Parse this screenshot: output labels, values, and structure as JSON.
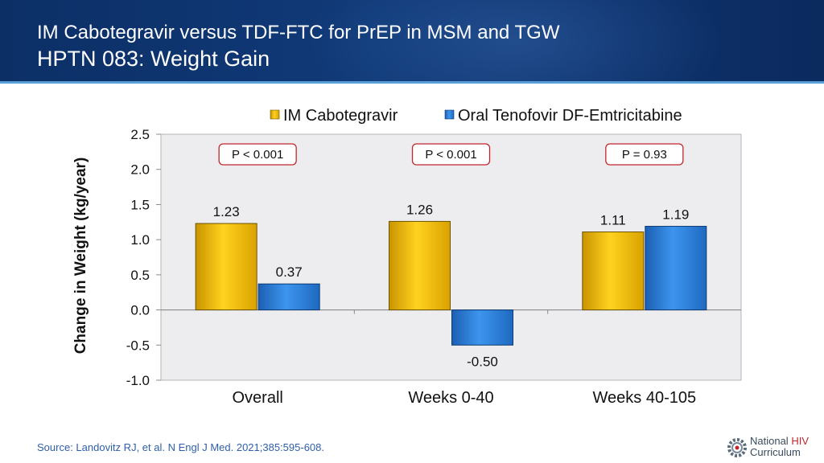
{
  "header": {
    "line1": "IM Cabotegravir versus TDF-FTC for PrEP in MSM and TGW",
    "line2": "HPTN 083: Weight Gain"
  },
  "source": "Source: Landovitz RJ, et al. N Engl J Med. 2021;385:595-608.",
  "logo": {
    "word1": "National",
    "word2": "HIV",
    "word3": "Curriculum"
  },
  "colors": {
    "cabotegravir": "#f2b705",
    "tenofovir": "#2b7fd6",
    "pbox_border": "#c0272d",
    "header": "#0c2f66"
  },
  "chart_data": {
    "type": "bar",
    "title": "",
    "xlabel": "",
    "ylabel": "Change in Weight (kg/year)",
    "ylim": [
      -1.0,
      2.5
    ],
    "yticks": [
      2.5,
      2.0,
      1.5,
      1.0,
      0.5,
      0.0,
      -0.5,
      -1.0
    ],
    "ytick_labels": [
      "2.5",
      "2.0",
      "1.5",
      "1.0",
      "0.5",
      "0.0",
      "-0.5",
      "-1.0"
    ],
    "categories": [
      "Overall",
      "Weeks 0-40",
      "Weeks 40-105"
    ],
    "series": [
      {
        "name": "IM Cabotegravir",
        "values": [
          1.23,
          1.26,
          1.11
        ],
        "labels": [
          "1.23",
          "1.26",
          "1.11"
        ]
      },
      {
        "name": "Oral Tenofovir DF-Emtricitabine",
        "values": [
          0.37,
          -0.5,
          1.19
        ],
        "labels": [
          "0.37",
          "-0.50",
          "1.19"
        ]
      }
    ],
    "annotations": [
      "P < 0.001",
      "P < 0.001",
      "P = 0.93"
    ],
    "legend": "top"
  }
}
